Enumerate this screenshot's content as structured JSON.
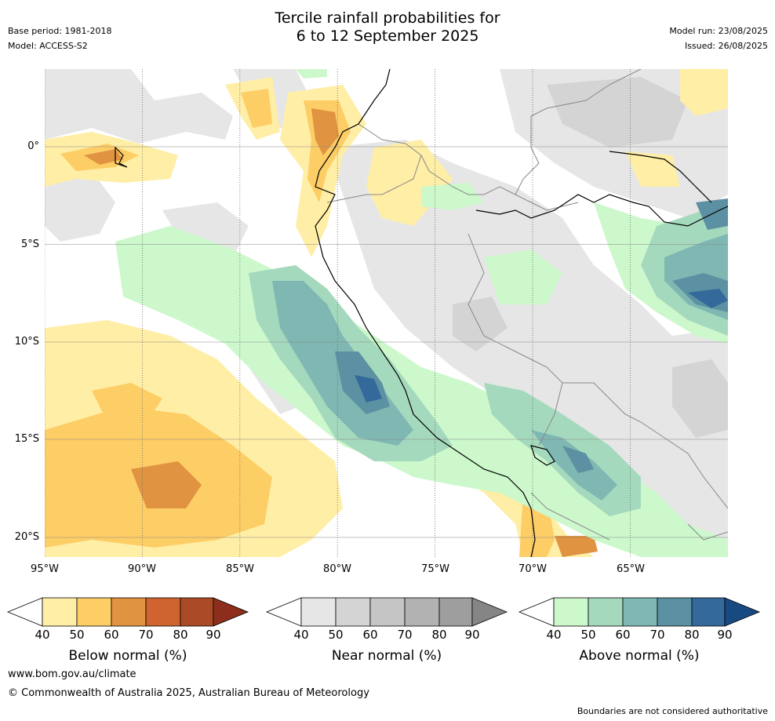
{
  "header": {
    "title_line1": "Tercile rainfall probabilities for",
    "title_line2": "6 to 12 September 2025",
    "base_period": "Base period: 1981-2018",
    "model": "Model: ACCESS-S2",
    "model_run": "Model run: 23/08/2025",
    "issued": "Issued: 26/08/2025"
  },
  "map": {
    "lat_labels": [
      "0°",
      "5°S",
      "10°S",
      "15°S",
      "20°S"
    ],
    "lon_labels": [
      "95°W",
      "90°W",
      "85°W",
      "80°W",
      "75°W",
      "70°W",
      "65°W"
    ],
    "colors": {
      "below": [
        "#ffeea6",
        "#fdcd66",
        "#e09340",
        "#cf6430",
        "#ab4a26",
        "#8c2e1b"
      ],
      "near": [
        "#e6e6e6",
        "#d4d4d4",
        "#c5c5c5",
        "#b2b2b2",
        "#9e9e9e",
        "#858585"
      ],
      "above": [
        "#ccf8cc",
        "#a5d9bd",
        "#7fb7b3",
        "#5b91a2",
        "#34699b",
        "#184a82"
      ]
    }
  },
  "colorbars": [
    {
      "label": "Below normal (%)",
      "ticks": [
        "40",
        "50",
        "60",
        "70",
        "80",
        "90"
      ]
    },
    {
      "label": "Near normal (%)",
      "ticks": [
        "40",
        "50",
        "60",
        "70",
        "80",
        "90"
      ]
    },
    {
      "label": "Above normal (%)",
      "ticks": [
        "40",
        "50",
        "60",
        "70",
        "80",
        "90"
      ]
    }
  ],
  "footer": {
    "url": "www.bom.gov.au/climate",
    "copyright": "© Commonwealth of Australia 2025, Australian Bureau of Meteorology",
    "disclaimer": "Boundaries are not considered authoritative"
  }
}
